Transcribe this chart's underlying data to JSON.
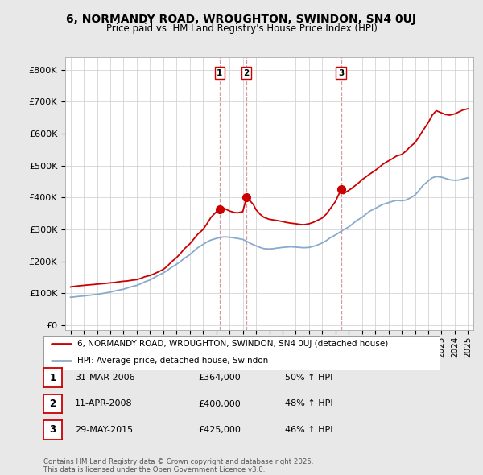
{
  "title": "6, NORMANDY ROAD, WROUGHTON, SWINDON, SN4 0UJ",
  "subtitle": "Price paid vs. HM Land Registry's House Price Index (HPI)",
  "bg_color": "#e8e8e8",
  "plot_bg_color": "#ffffff",
  "red_color": "#cc0000",
  "blue_color": "#88aacc",
  "dashed_color": "#cc8888",
  "yticks": [
    0,
    100000,
    200000,
    300000,
    400000,
    500000,
    600000,
    700000,
    800000
  ],
  "ytick_labels": [
    "£0",
    "£100K",
    "£200K",
    "£300K",
    "£400K",
    "£500K",
    "£600K",
    "£700K",
    "£800K"
  ],
  "ylim": [
    -15000,
    840000
  ],
  "xlim": [
    1994.6,
    2025.4
  ],
  "sale_dates": [
    2006.25,
    2008.28,
    2015.41
  ],
  "sale_prices": [
    364000,
    400000,
    425000
  ],
  "sale_labels": [
    "1",
    "2",
    "3"
  ],
  "legend_entries": [
    "6, NORMANDY ROAD, WROUGHTON, SWINDON, SN4 0UJ (detached house)",
    "HPI: Average price, detached house, Swindon"
  ],
  "table_rows": [
    [
      "1",
      "31-MAR-2006",
      "£364,000",
      "50% ↑ HPI"
    ],
    [
      "2",
      "11-APR-2008",
      "£400,000",
      "48% ↑ HPI"
    ],
    [
      "3",
      "29-MAY-2015",
      "£425,000",
      "46% ↑ HPI"
    ]
  ],
  "footer": "Contains HM Land Registry data © Crown copyright and database right 2025.\nThis data is licensed under the Open Government Licence v3.0.",
  "red_x": [
    1995.0,
    1995.1,
    1995.3,
    1995.5,
    1995.7,
    1996.0,
    1996.2,
    1996.5,
    1996.8,
    1997.0,
    1997.3,
    1997.6,
    1998.0,
    1998.3,
    1998.6,
    1999.0,
    1999.3,
    1999.6,
    2000.0,
    2000.3,
    2000.6,
    2001.0,
    2001.3,
    2001.6,
    2002.0,
    2002.3,
    2002.6,
    2003.0,
    2003.3,
    2003.6,
    2004.0,
    2004.3,
    2004.6,
    2005.0,
    2005.3,
    2005.6,
    2006.0,
    2006.25,
    2006.5,
    2006.8,
    2007.0,
    2007.3,
    2007.6,
    2008.0,
    2008.28,
    2008.5,
    2008.8,
    2009.0,
    2009.3,
    2009.6,
    2010.0,
    2010.3,
    2010.6,
    2011.0,
    2011.3,
    2011.6,
    2012.0,
    2012.3,
    2012.6,
    2013.0,
    2013.3,
    2013.6,
    2014.0,
    2014.3,
    2014.6,
    2015.0,
    2015.41,
    2015.6,
    2015.9,
    2016.2,
    2016.5,
    2016.8,
    2017.0,
    2017.3,
    2017.6,
    2018.0,
    2018.3,
    2018.6,
    2019.0,
    2019.3,
    2019.6,
    2020.0,
    2020.3,
    2020.6,
    2021.0,
    2021.3,
    2021.6,
    2022.0,
    2022.3,
    2022.6,
    2023.0,
    2023.3,
    2023.6,
    2024.0,
    2024.3,
    2024.6,
    2025.0
  ],
  "red_y": [
    120000,
    121000,
    122000,
    123000,
    124000,
    125000,
    126000,
    127000,
    128000,
    129000,
    130000,
    131000,
    133000,
    134000,
    136000,
    138000,
    139000,
    141000,
    143000,
    147000,
    152000,
    156000,
    161000,
    167000,
    175000,
    185000,
    198000,
    212000,
    225000,
    240000,
    255000,
    270000,
    285000,
    300000,
    318000,
    338000,
    355000,
    364000,
    368000,
    362000,
    358000,
    354000,
    352000,
    356000,
    400000,
    392000,
    378000,
    362000,
    348000,
    338000,
    332000,
    330000,
    328000,
    325000,
    322000,
    320000,
    318000,
    316000,
    315000,
    318000,
    322000,
    328000,
    336000,
    348000,
    365000,
    388000,
    425000,
    412000,
    420000,
    428000,
    438000,
    448000,
    456000,
    465000,
    474000,
    485000,
    495000,
    505000,
    515000,
    522000,
    530000,
    535000,
    545000,
    558000,
    572000,
    590000,
    610000,
    635000,
    658000,
    672000,
    665000,
    660000,
    658000,
    662000,
    668000,
    674000,
    678000
  ],
  "blue_x": [
    1995.0,
    1995.3,
    1995.6,
    1996.0,
    1996.3,
    1996.6,
    1997.0,
    1997.3,
    1997.6,
    1998.0,
    1998.3,
    1998.6,
    1999.0,
    1999.3,
    1999.6,
    2000.0,
    2000.3,
    2000.6,
    2001.0,
    2001.3,
    2001.6,
    2002.0,
    2002.3,
    2002.6,
    2003.0,
    2003.3,
    2003.6,
    2004.0,
    2004.3,
    2004.6,
    2005.0,
    2005.3,
    2005.6,
    2006.0,
    2006.3,
    2006.6,
    2007.0,
    2007.3,
    2007.6,
    2008.0,
    2008.3,
    2008.6,
    2009.0,
    2009.3,
    2009.6,
    2010.0,
    2010.3,
    2010.6,
    2011.0,
    2011.3,
    2011.6,
    2012.0,
    2012.3,
    2012.6,
    2013.0,
    2013.3,
    2013.6,
    2014.0,
    2014.3,
    2014.6,
    2015.0,
    2015.3,
    2015.6,
    2016.0,
    2016.3,
    2016.6,
    2017.0,
    2017.3,
    2017.6,
    2018.0,
    2018.3,
    2018.6,
    2019.0,
    2019.3,
    2019.6,
    2020.0,
    2020.3,
    2020.6,
    2021.0,
    2021.3,
    2021.6,
    2022.0,
    2022.3,
    2022.6,
    2023.0,
    2023.3,
    2023.6,
    2024.0,
    2024.3,
    2024.6,
    2025.0
  ],
  "blue_y": [
    88000,
    89000,
    90500,
    92000,
    93500,
    95000,
    97000,
    99000,
    101000,
    104000,
    107000,
    110000,
    113000,
    117000,
    121000,
    125000,
    130000,
    136000,
    142000,
    149000,
    156000,
    164000,
    172000,
    181000,
    191000,
    200000,
    210000,
    221000,
    232000,
    243000,
    253000,
    261000,
    267000,
    272000,
    275000,
    277000,
    276000,
    274000,
    272000,
    269000,
    263000,
    256000,
    249000,
    244000,
    240000,
    239000,
    240000,
    242000,
    244000,
    245000,
    246000,
    245000,
    244000,
    243000,
    244000,
    247000,
    251000,
    258000,
    265000,
    274000,
    283000,
    291000,
    299000,
    308000,
    318000,
    328000,
    338000,
    348000,
    358000,
    366000,
    373000,
    379000,
    384000,
    388000,
    391000,
    390000,
    392000,
    398000,
    408000,
    422000,
    438000,
    452000,
    462000,
    466000,
    464000,
    460000,
    456000,
    454000,
    455000,
    458000,
    462000
  ]
}
